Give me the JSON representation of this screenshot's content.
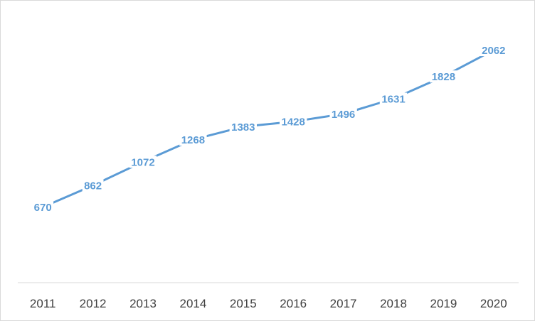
{
  "chart_data": {
    "type": "line",
    "categories": [
      "2011",
      "2012",
      "2013",
      "2014",
      "2015",
      "2016",
      "2017",
      "2018",
      "2019",
      "2020"
    ],
    "series": [
      {
        "values": [
          670,
          862,
          1072,
          1268,
          1383,
          1428,
          1496,
          1631,
          1828,
          2062
        ],
        "color": "#5b9bd5"
      }
    ],
    "title": "",
    "xlabel": "",
    "ylabel": "",
    "ylim": [
      0,
      2500
    ],
    "grid": false,
    "legend": "none",
    "data_labels": true,
    "axis_color": "#d9d9d9",
    "tick_label_color": "#404040"
  }
}
